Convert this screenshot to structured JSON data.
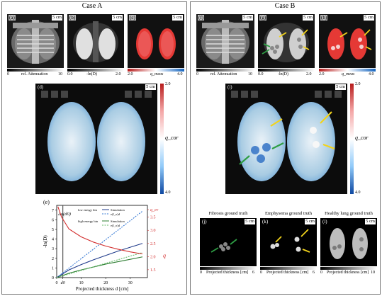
{
  "caseA": {
    "title": "Case A",
    "panels": {
      "a": "(a)",
      "b": "(b)",
      "c": "(c)",
      "d": "(d)",
      "e": "(e)"
    },
    "scale_bar": "5 cm",
    "cbar_a": {
      "min": "0",
      "label": "rel. Attenuation",
      "max": "10"
    },
    "cbar_b": {
      "min": "0.0",
      "label": "-ln(D)",
      "max": "2.0"
    },
    "cbar_c": {
      "min": "2.0",
      "label": "q_meas",
      "max": "4.0"
    },
    "cbar_d": {
      "top": "2.0",
      "bottom": "4.0",
      "label": "q_cor"
    }
  },
  "caseB": {
    "title": "Case B",
    "panels": {
      "f": "(f)",
      "g": "(g)",
      "h": "(h)",
      "i": "(i)",
      "j": "(j)",
      "k": "(k)",
      "l": "(l)"
    },
    "scale_bar": "5 cm",
    "cbar_f": {
      "min": "0",
      "label": "rel. Attenuation",
      "max": "10"
    },
    "cbar_g": {
      "min": "0.0",
      "label": "-ln(D)",
      "max": "2.0"
    },
    "cbar_h": {
      "min": "2.0",
      "label": "q_meas",
      "max": "4.0"
    },
    "cbar_i": {
      "top": "2.0",
      "bottom": "4.0",
      "label": "q_cor"
    },
    "gt": {
      "j": {
        "title": "Fibrosis ground truth",
        "min": "0",
        "label": "Projected thickness [cm]",
        "max": "6"
      },
      "k": {
        "title": "Emphysema ground truth",
        "min": "0",
        "label": "Projected thickness [cm]",
        "max": "6"
      },
      "l": {
        "title": "Healthy lung ground truth",
        "min": "0",
        "label": "Projected thickness [cm]",
        "max": "10"
      }
    }
  },
  "chart_data": {
    "type": "line",
    "xlabel": "Projected thickness d [cm]",
    "ylabel": "-ln(D)",
    "y2label": "q",
    "x_ticks": [
      "0",
      "d0",
      "10",
      "20",
      "30"
    ],
    "y_ticks": [
      "0",
      "1",
      "2",
      "3",
      "4",
      "5",
      "6",
      "7"
    ],
    "y2_ticks": [
      "1.5",
      "2.0",
      "2.5",
      "3.0",
      "3.5",
      "q_ev"
    ],
    "xlim": [
      0,
      37
    ],
    "ylim": [
      0,
      7.5
    ],
    "y2lim": [
      1.2,
      3.95
    ],
    "annotations": [
      "Δμ(d0)"
    ],
    "legend_groups": [
      {
        "label": "low energy bin",
        "entries": [
          "Simulation",
          "e(l_o)d"
        ]
      },
      {
        "label": "high energy bin",
        "entries": [
          "Simulation",
          "e(l_o)d"
        ]
      }
    ],
    "series": [
      {
        "name": "Simulation",
        "group": "low energy bin",
        "axis": "left",
        "color": "#1f3a8a",
        "x": [
          0,
          5,
          10,
          15,
          20,
          25,
          30,
          35
        ],
        "y": [
          0,
          0.8,
          1.35,
          1.85,
          2.3,
          2.75,
          3.15,
          3.55
        ]
      },
      {
        "name": "e(l_o)d",
        "group": "low energy bin",
        "axis": "left",
        "color": "#3a7bd5",
        "dashed": true,
        "x": [
          0,
          35
        ],
        "y": [
          0,
          6.9
        ]
      },
      {
        "name": "Simulation",
        "group": "high energy bin",
        "axis": "left",
        "color": "#2e7d32",
        "x": [
          0,
          5,
          10,
          15,
          20,
          25,
          30,
          35
        ],
        "y": [
          0,
          0.45,
          0.8,
          1.1,
          1.4,
          1.65,
          1.9,
          2.15
        ]
      },
      {
        "name": "e(l_o)d",
        "group": "high energy bin",
        "axis": "left",
        "color": "#66bb6a",
        "dashed": true,
        "x": [
          0,
          35
        ],
        "y": [
          0,
          2.6
        ]
      },
      {
        "name": "q",
        "axis": "right",
        "color": "#d32f2f",
        "x": [
          0.5,
          2,
          5,
          10,
          15,
          20,
          25,
          30,
          35
        ],
        "y": [
          3.9,
          3.5,
          3.05,
          2.75,
          2.55,
          2.4,
          2.28,
          2.18,
          2.1
        ]
      }
    ]
  }
}
